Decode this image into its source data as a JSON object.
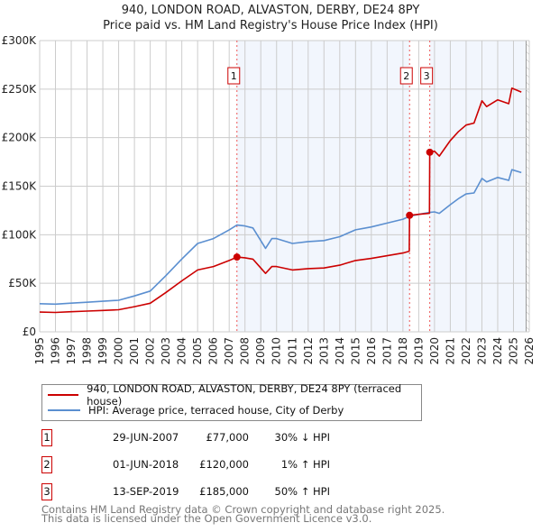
{
  "chart_data": {
    "type": "line",
    "title": "940, LONDON ROAD, ALVASTON, DERBY, DE24 8PY",
    "subtitle": "Price paid vs. HM Land Registry's House Price Index (HPI)",
    "xlim": [
      1995,
      2026
    ],
    "ylim": [
      0,
      300000
    ],
    "x_ticks": [
      "1995",
      "1996",
      "1997",
      "1998",
      "1999",
      "2000",
      "2001",
      "2002",
      "2003",
      "2004",
      "2005",
      "2006",
      "2007",
      "2008",
      "2009",
      "2010",
      "2011",
      "2012",
      "2013",
      "2014",
      "2015",
      "2016",
      "2017",
      "2018",
      "2019",
      "2020",
      "2021",
      "2022",
      "2023",
      "2024",
      "2025",
      "2026"
    ],
    "y_ticks": [
      {
        "v": 0,
        "label": "£0"
      },
      {
        "v": 50000,
        "label": "£50K"
      },
      {
        "v": 100000,
        "label": "£100K"
      },
      {
        "v": 150000,
        "label": "£150K"
      },
      {
        "v": 200000,
        "label": "£200K"
      },
      {
        "v": 250000,
        "label": "£250K"
      },
      {
        "v": 300000,
        "label": "£300K"
      }
    ],
    "grid": true,
    "data_end": 2025.8,
    "series": [
      {
        "name": "940, LONDON ROAD, ALVASTON, DERBY, DE24 8PY (terraced house)",
        "color": "#cc0000",
        "points": [
          [
            1995,
            20300
          ],
          [
            1996,
            20000
          ],
          [
            1997,
            20700
          ],
          [
            1998,
            21400
          ],
          [
            1999,
            22000
          ],
          [
            2000,
            22800
          ],
          [
            2001,
            25900
          ],
          [
            2002,
            29400
          ],
          [
            2003,
            40600
          ],
          [
            2004,
            52500
          ],
          [
            2005,
            63700
          ],
          [
            2006,
            67200
          ],
          [
            2007,
            73500
          ],
          [
            2007.49,
            77000
          ],
          [
            2008,
            76300
          ],
          [
            2008.5,
            74900
          ],
          [
            2009,
            65800
          ],
          [
            2009.3,
            60200
          ],
          [
            2009.7,
            67200
          ],
          [
            2010,
            67200
          ],
          [
            2011,
            63700
          ],
          [
            2012,
            65100
          ],
          [
            2013,
            65800
          ],
          [
            2014,
            68600
          ],
          [
            2015,
            73500
          ],
          [
            2016,
            75600
          ],
          [
            2017,
            78400
          ],
          [
            2018,
            81200
          ],
          [
            2018.4,
            83000
          ],
          [
            2018.42,
            120000
          ],
          [
            2019,
            121000
          ],
          [
            2019.68,
            122000
          ],
          [
            2019.7,
            185000
          ],
          [
            2020,
            186000
          ],
          [
            2020.3,
            181000
          ],
          [
            2021,
            197000
          ],
          [
            2021.5,
            206000
          ],
          [
            2022,
            213000
          ],
          [
            2022.5,
            215000
          ],
          [
            2023,
            238000
          ],
          [
            2023.3,
            232000
          ],
          [
            2024,
            239000
          ],
          [
            2024.7,
            235000
          ],
          [
            2024.9,
            251000
          ],
          [
            2025.5,
            247000
          ]
        ]
      },
      {
        "name": "HPI: Average price, terraced house, City of Derby",
        "color": "#5b8fd0",
        "points": [
          [
            1995,
            29000
          ],
          [
            1996,
            28500
          ],
          [
            1997,
            29500
          ],
          [
            1998,
            30500
          ],
          [
            1999,
            31500
          ],
          [
            2000,
            32500
          ],
          [
            2001,
            37000
          ],
          [
            2002,
            42000
          ],
          [
            2003,
            58000
          ],
          [
            2004,
            75000
          ],
          [
            2005,
            91000
          ],
          [
            2006,
            96000
          ],
          [
            2007,
            105000
          ],
          [
            2007.49,
            110000
          ],
          [
            2008,
            109000
          ],
          [
            2008.5,
            107000
          ],
          [
            2009,
            94000
          ],
          [
            2009.3,
            86000
          ],
          [
            2009.7,
            96000
          ],
          [
            2010,
            96000
          ],
          [
            2011,
            91000
          ],
          [
            2012,
            93000
          ],
          [
            2013,
            94000
          ],
          [
            2014,
            98000
          ],
          [
            2015,
            105000
          ],
          [
            2016,
            108000
          ],
          [
            2017,
            112000
          ],
          [
            2018,
            116000
          ],
          [
            2018.42,
            119000
          ],
          [
            2019,
            121000
          ],
          [
            2019.7,
            123000
          ],
          [
            2020,
            123500
          ],
          [
            2020.3,
            122000
          ],
          [
            2021,
            131000
          ],
          [
            2021.5,
            137000
          ],
          [
            2022,
            142000
          ],
          [
            2022.5,
            143000
          ],
          [
            2023,
            158000
          ],
          [
            2023.3,
            154500
          ],
          [
            2024,
            159000
          ],
          [
            2024.7,
            156000
          ],
          [
            2024.9,
            167000
          ],
          [
            2025.5,
            164000
          ]
        ]
      }
    ],
    "sales": [
      {
        "label": "1",
        "x": 2007.49,
        "price": 77000
      },
      {
        "label": "2",
        "x": 2018.42,
        "price": 120000
      },
      {
        "label": "3",
        "x": 2019.7,
        "price": 185000
      }
    ]
  },
  "legend": {
    "red_label": "940, LONDON ROAD, ALVASTON, DERBY, DE24 8PY (terraced house)",
    "blue_label": "HPI: Average price, terraced house, City of Derby"
  },
  "transactions": [
    {
      "num": "1",
      "date": "29-JUN-2007",
      "price": "£77,000",
      "hpi": "30% ↓ HPI"
    },
    {
      "num": "2",
      "date": "01-JUN-2018",
      "price": "£120,000",
      "hpi": "1% ↑ HPI"
    },
    {
      "num": "3",
      "date": "13-SEP-2019",
      "price": "£185,000",
      "hpi": "50% ↑ HPI"
    }
  ],
  "footer": {
    "line1": "Contains HM Land Registry data © Crown copyright and database right 2025.",
    "line2": "This data is licensed under the Open Government Licence v3.0."
  }
}
